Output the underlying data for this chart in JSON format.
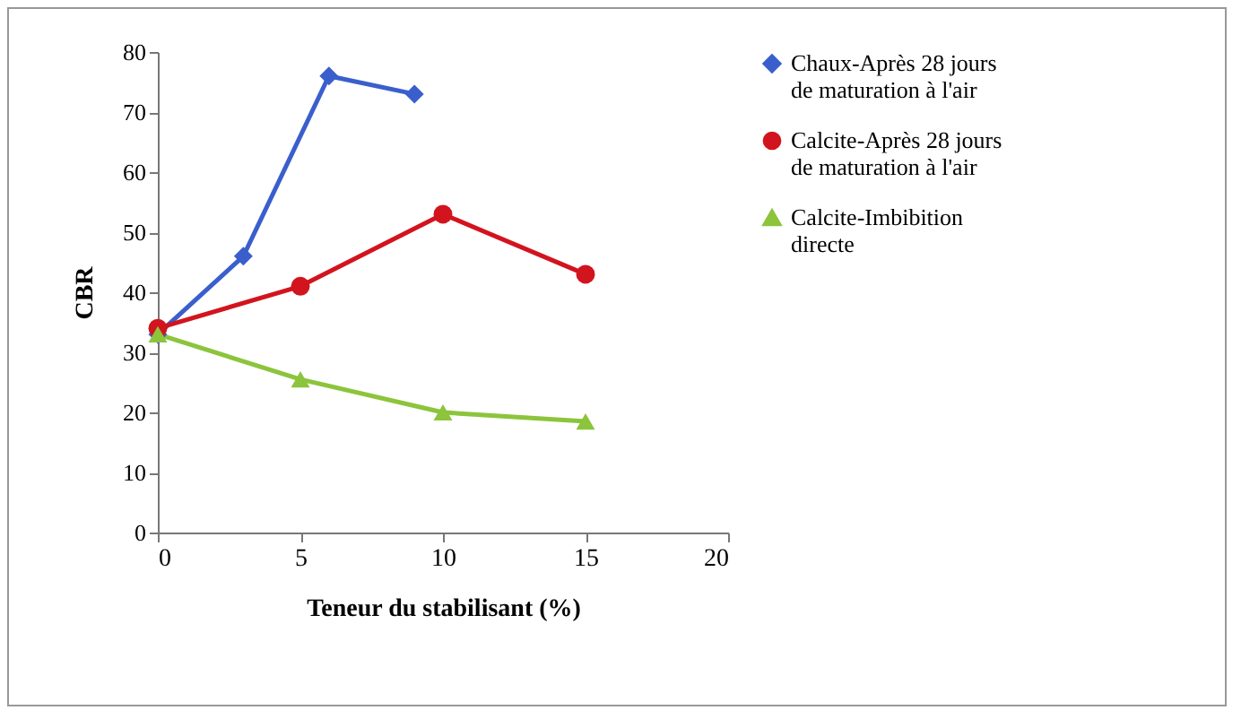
{
  "chart_data": {
    "type": "line",
    "xlabel": "Teneur du stabilisant (%)",
    "ylabel": "CBR",
    "xlim": [
      0,
      20
    ],
    "xticks": [
      0,
      5,
      10,
      15,
      20
    ],
    "ylim": [
      0,
      80
    ],
    "yticks": [
      0,
      10,
      20,
      30,
      40,
      50,
      60,
      70,
      80
    ],
    "grid": false,
    "legend": "right",
    "series": [
      {
        "name": "Chaux-Après 28 jours de maturation à l'air",
        "color": "#3a5fcd",
        "marker": "diamond",
        "x": [
          0,
          3,
          6,
          9
        ],
        "values": [
          33,
          46,
          76,
          73
        ]
      },
      {
        "name": "Calcite-Après 28 jours de maturation à l'air",
        "color": "#d2141e",
        "marker": "circle",
        "x": [
          0,
          5,
          10,
          15
        ],
        "values": [
          34,
          41,
          53,
          43
        ]
      },
      {
        "name": "Calcite-Imbibition directe",
        "color": "#8cc43c",
        "marker": "triangle",
        "x": [
          0,
          5,
          10,
          15
        ],
        "values": [
          33,
          25.5,
          20,
          18.5
        ]
      }
    ]
  }
}
